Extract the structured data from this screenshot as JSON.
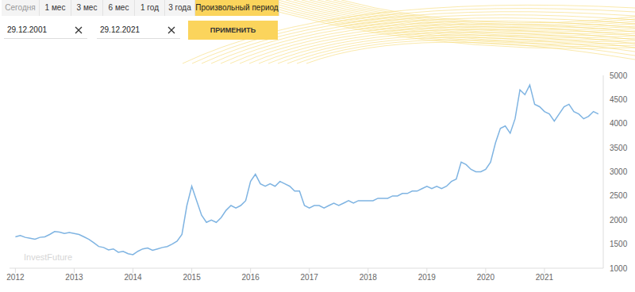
{
  "chart_data": {
    "type": "line",
    "x": [
      2012,
      2012.083,
      2012.167,
      2012.25,
      2012.333,
      2012.417,
      2012.5,
      2012.583,
      2012.667,
      2012.75,
      2012.833,
      2012.917,
      2013,
      2013.083,
      2013.167,
      2013.25,
      2013.333,
      2013.417,
      2013.5,
      2013.583,
      2013.667,
      2013.75,
      2013.833,
      2013.917,
      2014,
      2014.083,
      2014.167,
      2014.25,
      2014.333,
      2014.417,
      2014.5,
      2014.583,
      2014.667,
      2014.75,
      2014.833,
      2014.917,
      2015,
      2015.083,
      2015.167,
      2015.25,
      2015.333,
      2015.417,
      2015.5,
      2015.583,
      2015.667,
      2015.75,
      2015.833,
      2015.917,
      2016,
      2016.083,
      2016.167,
      2016.25,
      2016.333,
      2016.417,
      2016.5,
      2016.583,
      2016.667,
      2016.75,
      2016.833,
      2016.917,
      2017,
      2017.083,
      2017.167,
      2017.25,
      2017.333,
      2017.417,
      2017.5,
      2017.583,
      2017.667,
      2017.75,
      2017.833,
      2017.917,
      2018,
      2018.083,
      2018.167,
      2018.25,
      2018.333,
      2018.417,
      2018.5,
      2018.583,
      2018.667,
      2018.75,
      2018.833,
      2018.917,
      2019,
      2019.083,
      2019.167,
      2019.25,
      2019.333,
      2019.417,
      2019.5,
      2019.583,
      2019.667,
      2019.75,
      2019.833,
      2019.917,
      2020,
      2020.083,
      2020.167,
      2020.25,
      2020.333,
      2020.417,
      2020.5,
      2020.583,
      2020.667,
      2020.75,
      2020.833,
      2020.917,
      2021,
      2021.083,
      2021.167,
      2021.25,
      2021.333,
      2021.417,
      2021.5,
      2021.583,
      2021.667,
      2021.75,
      2021.833,
      2021.917
    ],
    "values": [
      1650,
      1680,
      1640,
      1620,
      1600,
      1640,
      1650,
      1700,
      1760,
      1750,
      1720,
      1740,
      1720,
      1700,
      1650,
      1600,
      1530,
      1450,
      1430,
      1380,
      1400,
      1330,
      1350,
      1300,
      1280,
      1350,
      1400,
      1420,
      1370,
      1400,
      1430,
      1450,
      1500,
      1560,
      1700,
      2300,
      2700,
      2400,
      2100,
      1950,
      2000,
      1950,
      2050,
      2200,
      2300,
      2250,
      2300,
      2400,
      2800,
      2950,
      2750,
      2700,
      2750,
      2700,
      2800,
      2750,
      2700,
      2600,
      2600,
      2300,
      2250,
      2300,
      2300,
      2250,
      2300,
      2350,
      2300,
      2350,
      2400,
      2350,
      2400,
      2400,
      2400,
      2400,
      2450,
      2450,
      2450,
      2500,
      2500,
      2550,
      2550,
      2600,
      2600,
      2650,
      2700,
      2650,
      2700,
      2650,
      2700,
      2800,
      2850,
      3200,
      3150,
      3050,
      3000,
      3000,
      3050,
      3200,
      3600,
      3900,
      3950,
      3800,
      4100,
      4700,
      4600,
      4800,
      4400,
      4350,
      4250,
      4200,
      4050,
      4200,
      4350,
      4400,
      4250,
      4200,
      4100,
      4150,
      4250,
      4200
    ],
    "color": "#7fb4e2",
    "xlim": [
      2011.9,
      2022
    ],
    "xticks": [
      2012,
      2013,
      2014,
      2015,
      2016,
      2017,
      2018,
      2019,
      2020,
      2021
    ],
    "ylim": [
      1000,
      5000
    ],
    "yticks": [
      1000,
      1500,
      2000,
      2500,
      3000,
      3500,
      4000,
      4500,
      5000
    ],
    "grid": false
  },
  "ui": {
    "tabs": [
      "Сегодня",
      "1 мес",
      "3 мес",
      "6 мес",
      "1 год",
      "3 года",
      "Произвольный период"
    ],
    "active_tab": "Произвольный период",
    "date_from": "29.12.2001",
    "date_to": "29.12.2021",
    "button": "ПРИМЕНИТЬ",
    "watermark": "InvestFuture"
  }
}
